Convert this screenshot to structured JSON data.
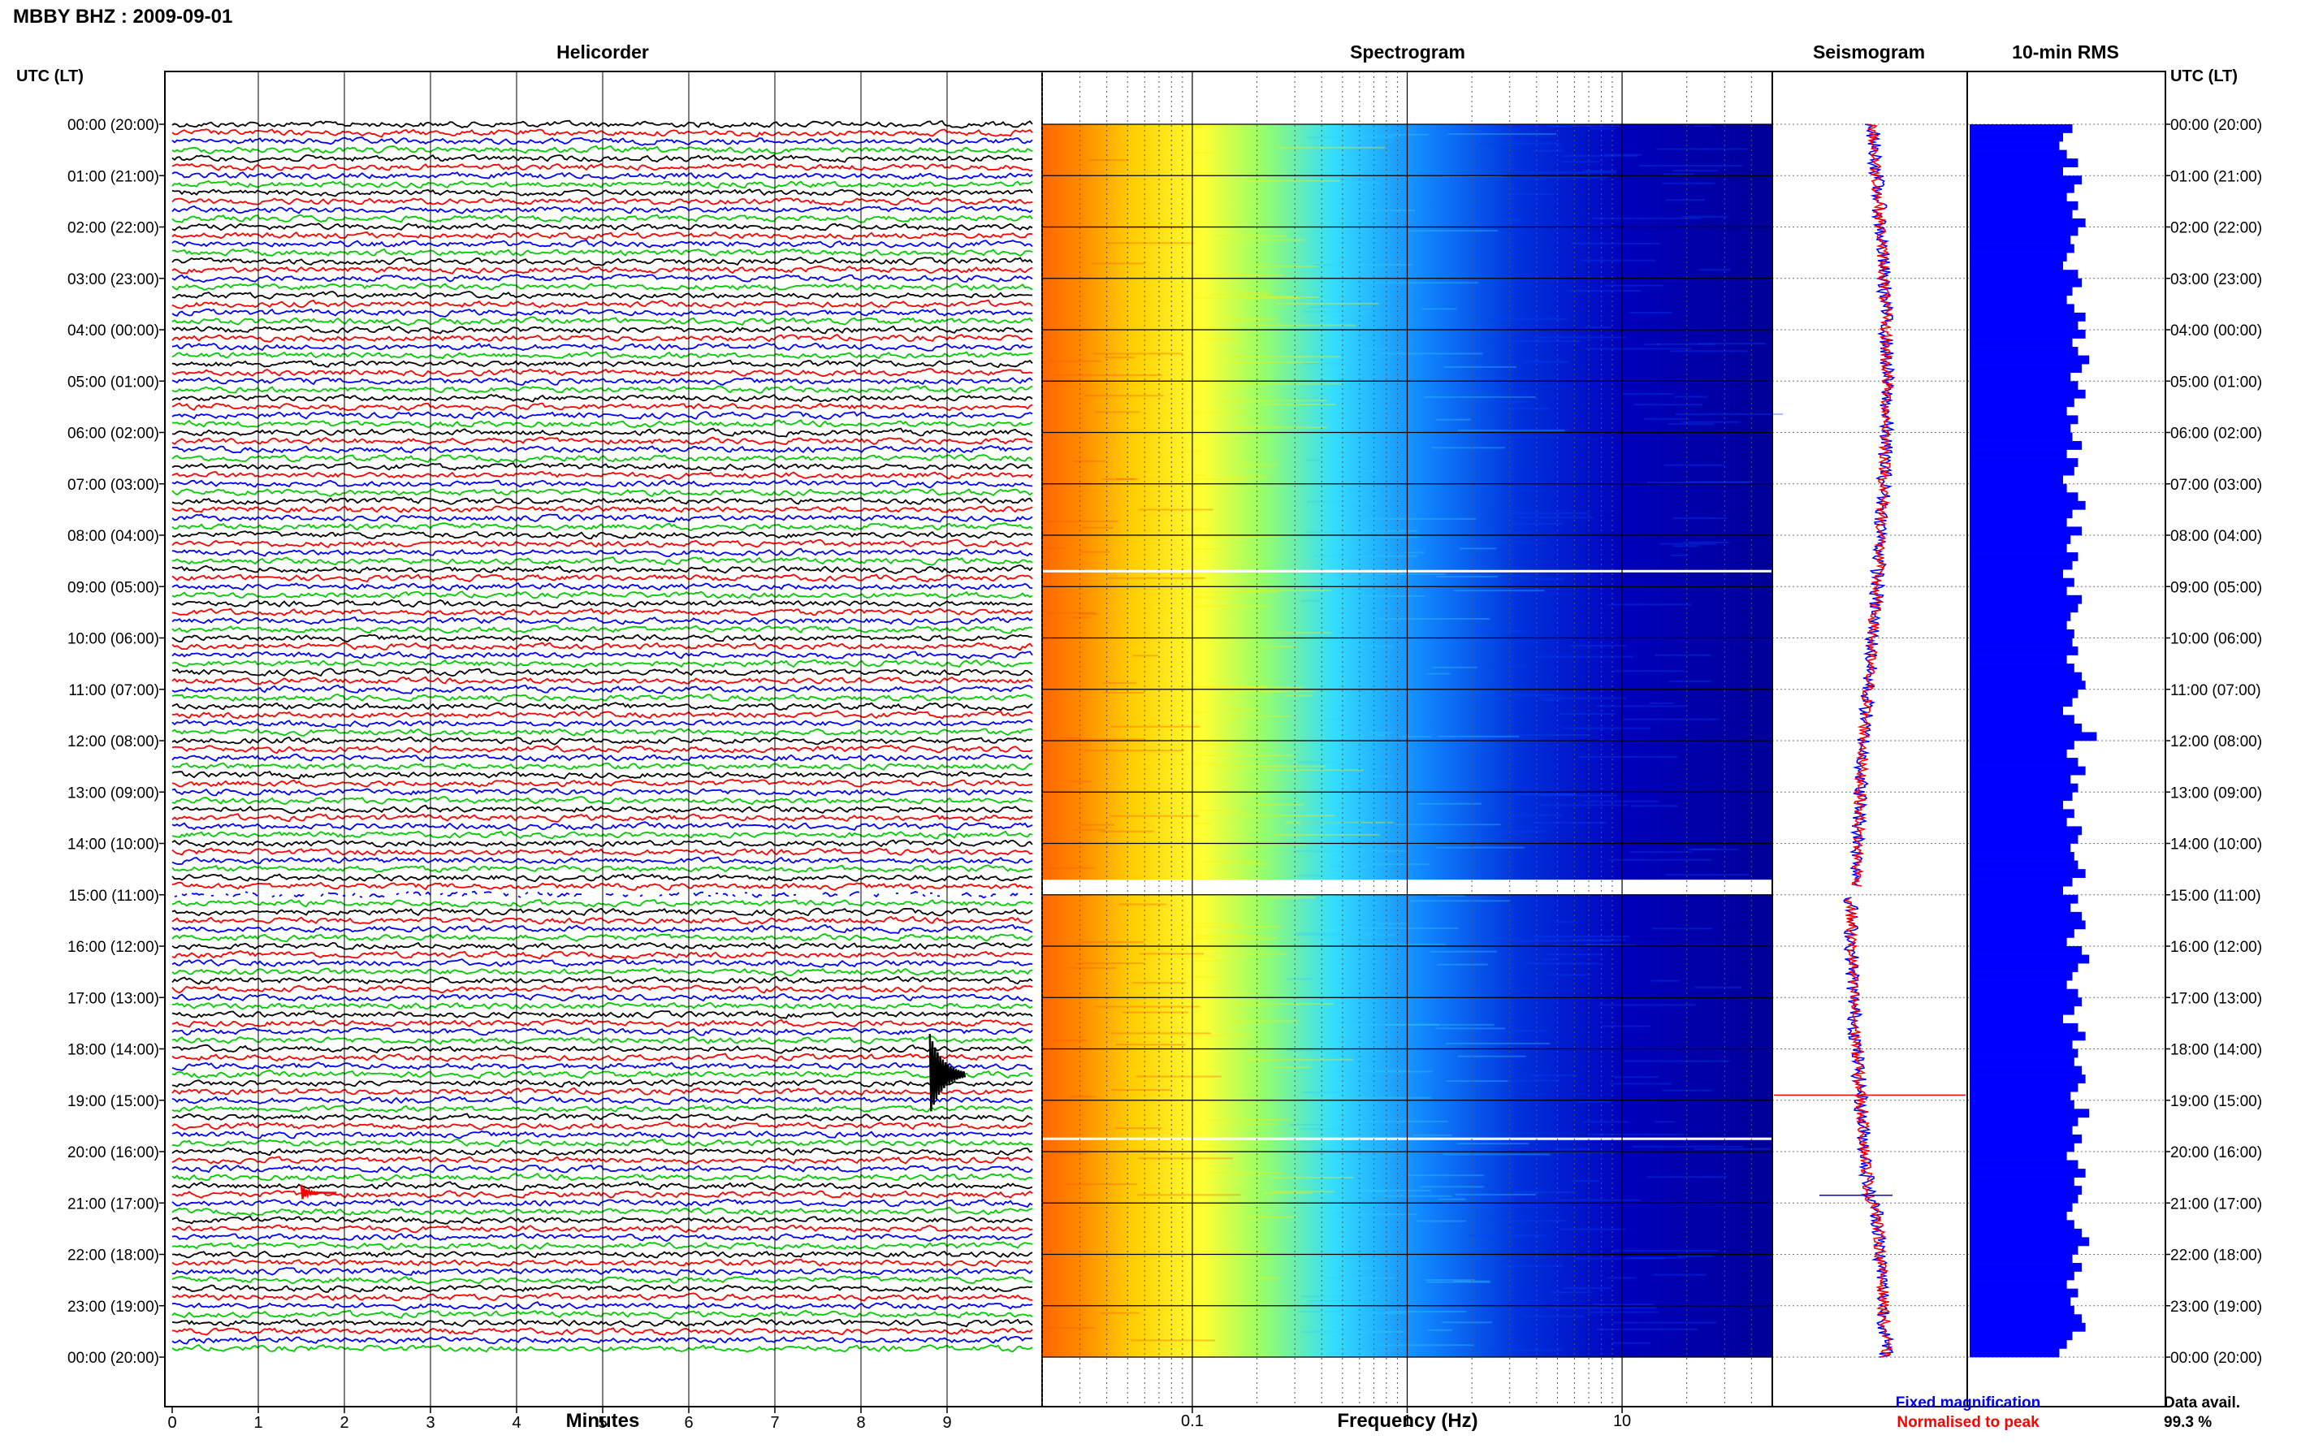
{
  "header": {
    "station_title": "MBBY BHZ : 2009-09-01"
  },
  "panels": {
    "helicorder_title": "Helicorder",
    "spectrogram_title": "Spectrogram",
    "seismogram_title": "Seismogram",
    "rms_title": "10-min RMS"
  },
  "axes": {
    "time_label": "UTC (LT)",
    "helicorder_xlabel": "Minutes",
    "spectrogram_xlabel": "Frequency (Hz)",
    "minute_ticks": [
      "0",
      "1",
      "2",
      "3",
      "4",
      "5",
      "6",
      "7",
      "8",
      "9"
    ],
    "frequency_ticks": [
      "0.1",
      "1",
      "10"
    ],
    "hour_labels": [
      "00:00 (20:00)",
      "01:00 (21:00)",
      "02:00 (22:00)",
      "03:00 (23:00)",
      "04:00 (00:00)",
      "05:00 (01:00)",
      "06:00 (02:00)",
      "07:00 (03:00)",
      "08:00 (04:00)",
      "09:00 (05:00)",
      "10:00 (06:00)",
      "11:00 (07:00)",
      "12:00 (08:00)",
      "13:00 (09:00)",
      "14:00 (10:00)",
      "15:00 (11:00)",
      "16:00 (12:00)",
      "17:00 (13:00)",
      "18:00 (14:00)",
      "19:00 (15:00)",
      "20:00 (16:00)",
      "21:00 (17:00)",
      "22:00 (18:00)",
      "23:00 (19:00)",
      "00:00 (20:00)"
    ]
  },
  "legend": {
    "fixed_magnification": "Fixed magnification",
    "normalised_to_peak": "Normalised to peak",
    "fixed_color": "#0000ff",
    "normalised_color": "#ff0000"
  },
  "availability": {
    "label": "Data avail.",
    "value": "99.3 %"
  },
  "colors": {
    "trace_cycle": [
      "#000000",
      "#ff0000",
      "#0000ff",
      "#00cc00"
    ],
    "rms_bar": "#0000ff"
  },
  "chart_data": [
    {
      "type": "line",
      "name": "helicorder",
      "x_unit": "minutes",
      "xlim": [
        0,
        10
      ],
      "rows_per_hour": 6,
      "hours": 24,
      "events": [
        {
          "hour": 18.5,
          "minute": 8.8,
          "color": "#000000",
          "kind": "earthquake"
        },
        {
          "hour": 20.8,
          "minute": 1.5,
          "color": "#ff0000",
          "kind": "spike"
        }
      ],
      "gap_hour": [
        14.9,
        15.1
      ]
    },
    {
      "type": "heatmap",
      "name": "spectrogram",
      "x_scale": "log",
      "xlim_hz": [
        0.02,
        50
      ],
      "hours": 24,
      "gaps_hour": [
        8.7,
        14.85,
        19.75
      ],
      "colormap": [
        "#ff6600",
        "#ffcc00",
        "#ffff00",
        "#88ff66",
        "#22ddff",
        "#0066ff",
        "#0000cc"
      ]
    },
    {
      "type": "line",
      "name": "seismogram",
      "series": [
        {
          "name": "Fixed magnification",
          "color": "#0000ff"
        },
        {
          "name": "Normalised to peak",
          "color": "#ff0000"
        }
      ]
    },
    {
      "type": "bar",
      "name": "rms_10min",
      "orientation": "horizontal",
      "values": [
        0.55,
        0.5,
        0.48,
        0.52,
        0.58,
        0.5,
        0.6,
        0.56,
        0.52,
        0.58,
        0.55,
        0.62,
        0.58,
        0.54,
        0.56,
        0.52,
        0.5,
        0.58,
        0.6,
        0.55,
        0.52,
        0.56,
        0.62,
        0.58,
        0.62,
        0.55,
        0.58,
        0.64,
        0.6,
        0.54,
        0.58,
        0.62,
        0.56,
        0.52,
        0.58,
        0.54,
        0.55,
        0.6,
        0.52,
        0.58,
        0.56,
        0.5,
        0.52,
        0.58,
        0.62,
        0.55,
        0.52,
        0.6,
        0.54,
        0.52,
        0.58,
        0.55,
        0.5,
        0.56,
        0.52,
        0.6,
        0.58,
        0.54,
        0.52,
        0.56,
        0.55,
        0.58,
        0.52,
        0.56,
        0.6,
        0.62,
        0.58,
        0.55,
        0.5,
        0.56,
        0.6,
        0.68,
        0.56,
        0.52,
        0.58,
        0.62,
        0.54,
        0.58,
        0.55,
        0.5,
        0.56,
        0.52,
        0.6,
        0.58,
        0.54,
        0.56,
        0.58,
        0.62,
        0.55,
        0.5,
        0.58,
        0.54,
        0.6,
        0.62,
        0.56,
        0.52,
        0.6,
        0.64,
        0.58,
        0.55,
        0.52,
        0.58,
        0.6,
        0.56,
        0.5,
        0.58,
        0.62,
        0.55,
        0.58,
        0.56,
        0.6,
        0.62,
        0.58,
        0.54,
        0.56,
        0.64,
        0.58,
        0.55,
        0.6,
        0.56,
        0.52,
        0.58,
        0.62,
        0.56,
        0.6,
        0.58,
        0.55,
        0.52,
        0.56,
        0.6,
        0.64,
        0.58,
        0.55,
        0.6,
        0.56,
        0.52,
        0.58,
        0.54,
        0.56,
        0.6,
        0.62,
        0.55,
        0.52,
        0.48
      ]
    }
  ]
}
